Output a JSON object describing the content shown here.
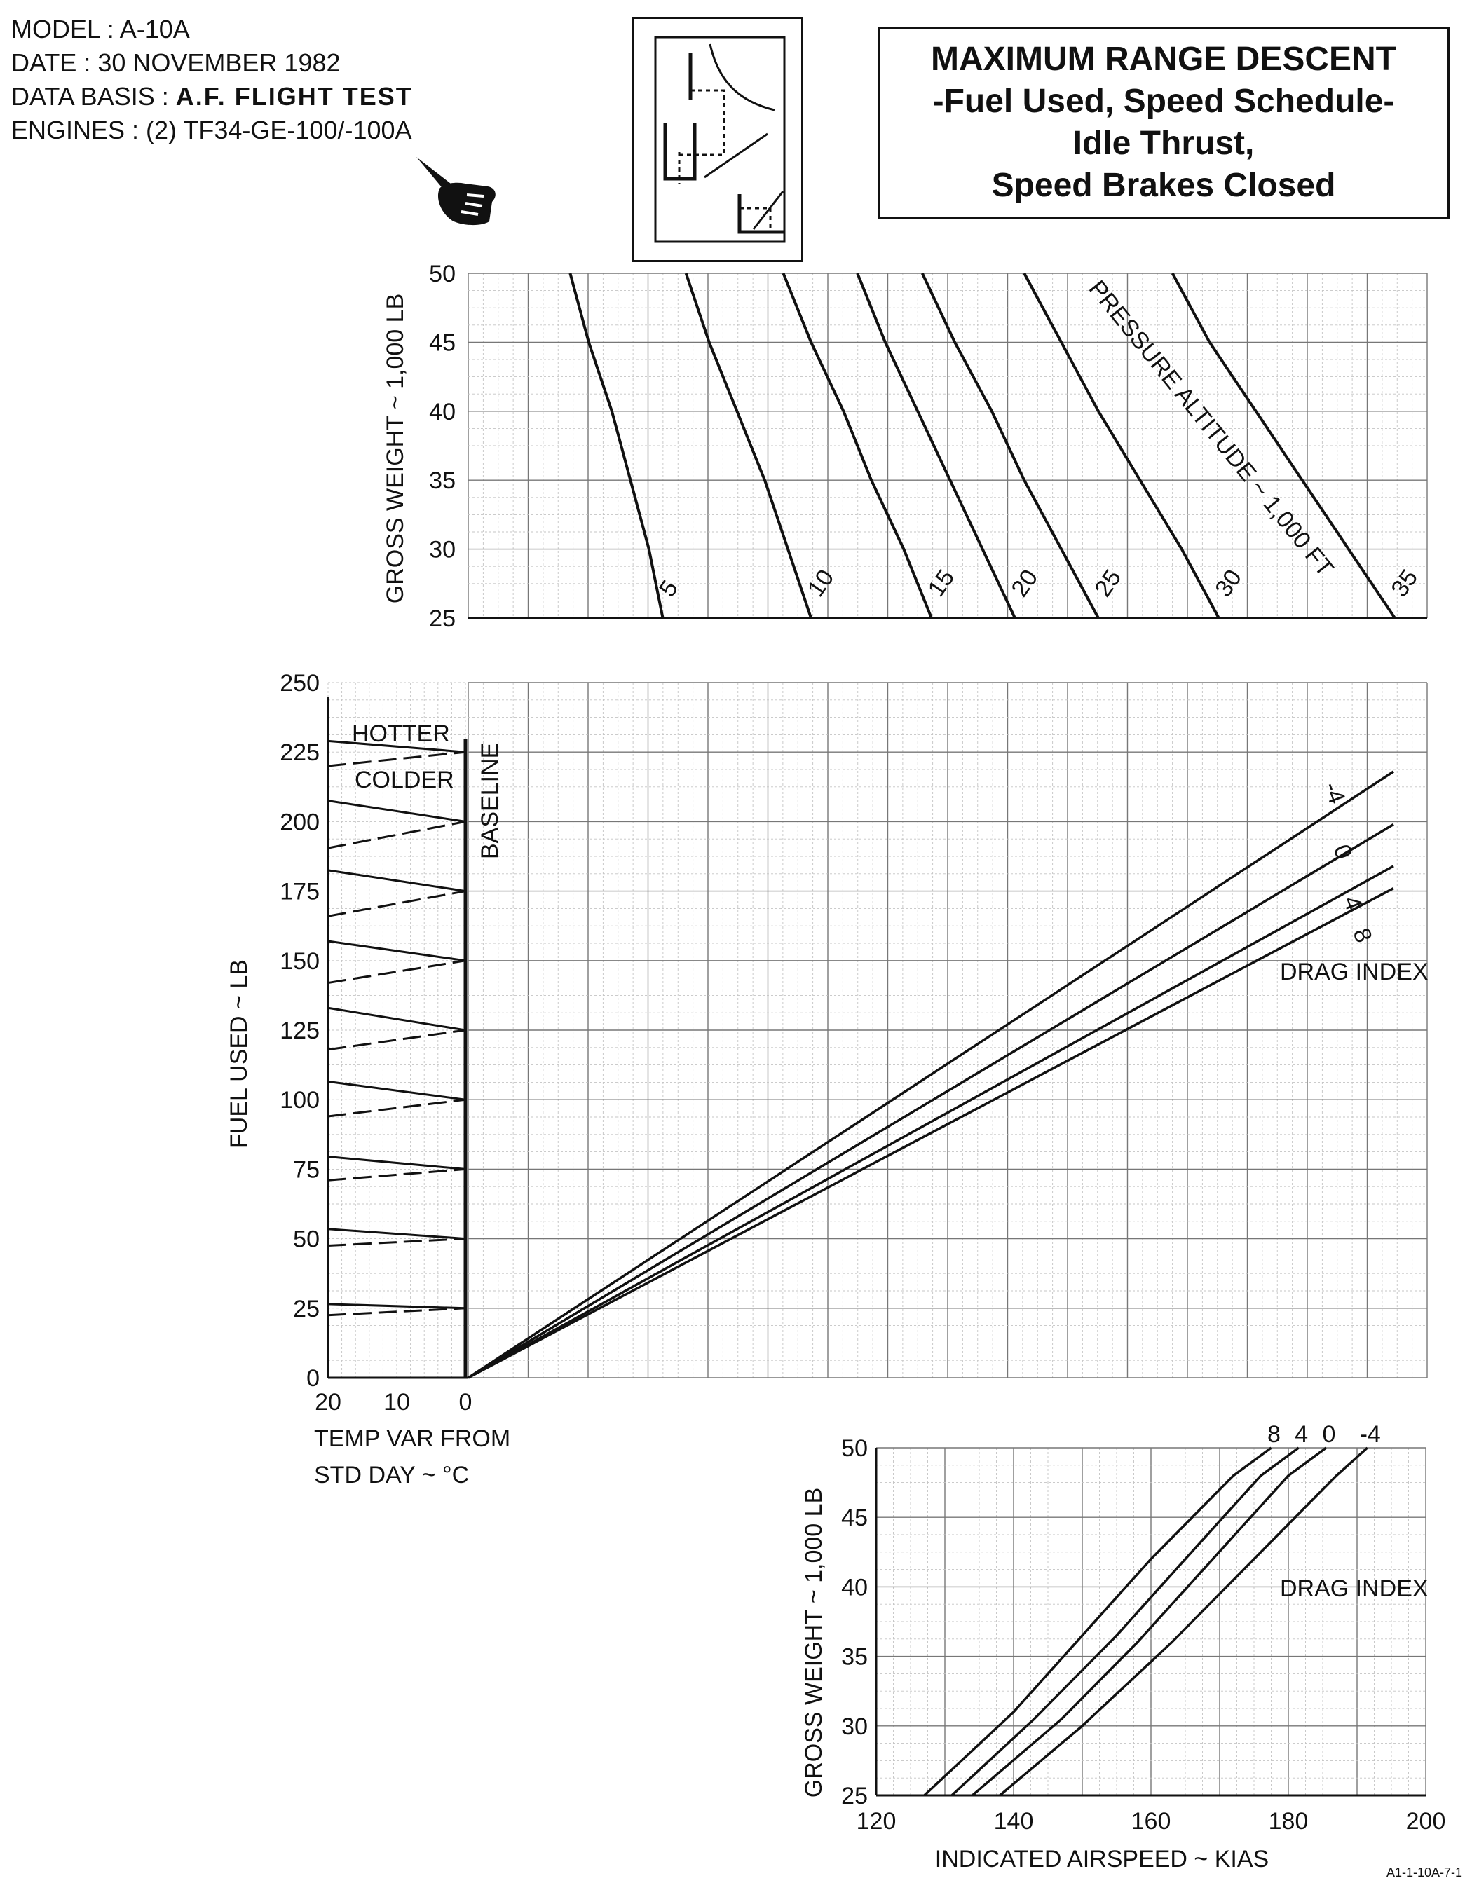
{
  "header": {
    "model": "MODEL : A-10A",
    "date": "DATE : 30 NOVEMBER 1982",
    "data_basis_label": "DATA BASIS :",
    "data_basis_value": "A.F. FLIGHT TEST",
    "engines": "ENGINES : (2) TF34-GE-100/-100A"
  },
  "title": {
    "line1": "MAXIMUM RANGE DESCENT",
    "line2": "-Fuel Used, Speed Schedule-",
    "line3": "Idle Thrust,",
    "line4": "Speed Brakes Closed"
  },
  "icons": {
    "key": "chart-reading-key-icon",
    "pointer": "pointing-hand-icon"
  },
  "figure_id": "A1-1-10A-7-1",
  "chart_data": [
    {
      "type": "line",
      "panel": "top",
      "ylabel": "GROSS WEIGHT ~ 1,000 LB",
      "ylim": [
        25,
        50
      ],
      "yticks": [
        25,
        30,
        35,
        40,
        45,
        50
      ],
      "grid": true,
      "curve_label": "PRESSURE ALTITUDE ~ 1,000 FT",
      "series": [
        {
          "name": "5",
          "points": [
            [
              0.21,
              25
            ],
            [
              0.195,
              30
            ],
            [
              0.175,
              35
            ],
            [
              0.155,
              40
            ],
            [
              0.13,
              45
            ],
            [
              0.11,
              50
            ]
          ]
        },
        {
          "name": "10",
          "points": [
            [
              0.37,
              25
            ],
            [
              0.345,
              30
            ],
            [
              0.32,
              35
            ],
            [
              0.29,
              40
            ],
            [
              0.26,
              45
            ],
            [
              0.235,
              50
            ]
          ]
        },
        {
          "name": "15",
          "points": [
            [
              0.5,
              25
            ],
            [
              0.47,
              30
            ],
            [
              0.435,
              35
            ],
            [
              0.405,
              40
            ],
            [
              0.37,
              45
            ],
            [
              0.34,
              50
            ]
          ]
        },
        {
          "name": "20",
          "points": [
            [
              0.59,
              25
            ],
            [
              0.555,
              30
            ],
            [
              0.52,
              35
            ],
            [
              0.485,
              40
            ],
            [
              0.45,
              45
            ],
            [
              0.42,
              50
            ]
          ]
        },
        {
          "name": "25",
          "points": [
            [
              0.68,
              25
            ],
            [
              0.64,
              30
            ],
            [
              0.6,
              35
            ],
            [
              0.565,
              40
            ],
            [
              0.525,
              45
            ],
            [
              0.49,
              50
            ]
          ]
        },
        {
          "name": "30",
          "points": [
            [
              0.81,
              25
            ],
            [
              0.77,
              30
            ],
            [
              0.725,
              35
            ],
            [
              0.68,
              40
            ],
            [
              0.64,
              45
            ],
            [
              0.6,
              50
            ]
          ]
        },
        {
          "name": "35",
          "points": [
            [
              1.0,
              25
            ],
            [
              0.95,
              30
            ],
            [
              0.9,
              35
            ],
            [
              0.85,
              40
            ],
            [
              0.8,
              45
            ],
            [
              0.76,
              50
            ]
          ]
        }
      ]
    },
    {
      "type": "line",
      "panel": "middle",
      "ylabel": "FUEL USED ~ LB",
      "ylim": [
        0,
        250
      ],
      "yticks": [
        0,
        25,
        50,
        75,
        100,
        125,
        150,
        175,
        200,
        225,
        250
      ],
      "grid": true,
      "curve_label": "DRAG INDEX",
      "series": [
        {
          "name": "-4",
          "points": [
            [
              0,
              0
            ],
            [
              1,
              218
            ]
          ]
        },
        {
          "name": "0",
          "points": [
            [
              0,
              0
            ],
            [
              1,
              199
            ]
          ]
        },
        {
          "name": "4",
          "points": [
            [
              0,
              0
            ],
            [
              1,
              184
            ]
          ]
        },
        {
          "name": "8",
          "points": [
            [
              0,
              0
            ],
            [
              1,
              176
            ]
          ]
        }
      ]
    },
    {
      "type": "line",
      "panel": "temperature",
      "xlabel": "TEMP VAR FROM STD DAY ~ °C",
      "xlim": [
        20,
        0
      ],
      "xticks": [
        20,
        10,
        0
      ],
      "labels": [
        "HOTTER",
        "COLDER",
        "BASELINE"
      ],
      "baseline_values": [
        25,
        50,
        75,
        100,
        125,
        150,
        175,
        200,
        225
      ],
      "hotter_at_20": [
        26.5,
        53.5,
        79.5,
        106.5,
        133,
        157,
        182.5,
        207.5,
        229
      ],
      "colder_at_20": [
        22.5,
        47.5,
        71,
        94,
        118,
        142,
        166,
        190.5,
        220
      ]
    },
    {
      "type": "line",
      "panel": "bottom",
      "xlabel": "INDICATED AIRSPEED ~ KIAS",
      "ylabel": "GROSS WEIGHT ~ 1,000 LB",
      "xlim": [
        120,
        200
      ],
      "ylim": [
        25,
        50
      ],
      "xticks": [
        120,
        140,
        160,
        180,
        200
      ],
      "yticks": [
        25,
        30,
        35,
        40,
        45,
        50
      ],
      "grid": true,
      "curve_label": "DRAG INDEX",
      "series": [
        {
          "name": "8",
          "points": [
            [
              127,
              25
            ],
            [
              140,
              31
            ],
            [
              150,
              36.5
            ],
            [
              160,
              42
            ],
            [
              172,
              48
            ],
            [
              180,
              51
            ]
          ]
        },
        {
          "name": "4",
          "points": [
            [
              131,
              25
            ],
            [
              143,
              30.5
            ],
            [
              155,
              36.5
            ],
            [
              165,
              42
            ],
            [
              176,
              48
            ],
            [
              184,
              51
            ]
          ]
        },
        {
          "name": "0",
          "points": [
            [
              134,
              25
            ],
            [
              147,
              30.5
            ],
            [
              158,
              36
            ],
            [
              169,
              42
            ],
            [
              180,
              48
            ],
            [
              188,
              51
            ]
          ]
        },
        {
          "name": "-4",
          "points": [
            [
              138,
              25
            ],
            [
              150,
              30
            ],
            [
              163,
              36
            ],
            [
              175,
              42
            ],
            [
              187,
              48
            ],
            [
              194,
              51
            ]
          ]
        }
      ]
    }
  ]
}
